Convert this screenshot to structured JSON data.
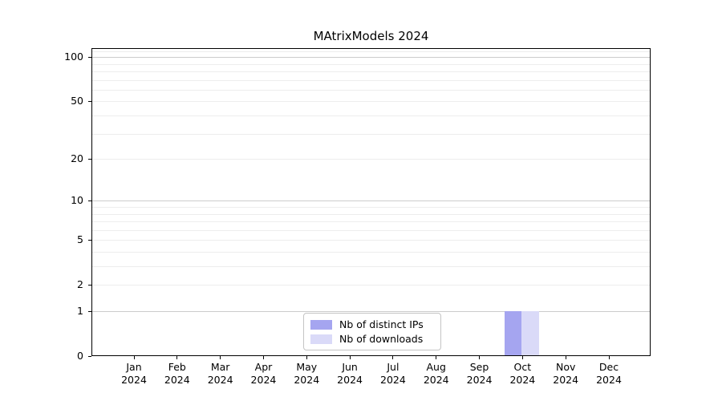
{
  "figure": {
    "title": "MAtrixModels 2024"
  },
  "chart_data": {
    "type": "bar",
    "title": "MAtrixModels 2024",
    "categories": [
      "Jan",
      "Feb",
      "Mar",
      "Apr",
      "May",
      "Jun",
      "Jul",
      "Aug",
      "Sep",
      "Oct",
      "Nov",
      "Dec"
    ],
    "x_sub_label": "2024",
    "series": [
      {
        "name": "Nb of distinct IPs",
        "color": "#a5a5f0",
        "values": [
          0,
          0,
          0,
          0,
          0,
          0,
          0,
          0,
          0,
          1,
          0,
          0
        ]
      },
      {
        "name": "Nb of downloads",
        "color": "#dadaf8",
        "values": [
          0,
          0,
          0,
          0,
          0,
          0,
          0,
          0,
          0,
          1,
          0,
          0
        ]
      }
    ],
    "xlabel": "",
    "ylabel": "",
    "y_scale": "log1p",
    "ylim": [
      0,
      115
    ],
    "y_ticks": [
      0,
      1,
      2,
      5,
      10,
      20,
      50,
      100
    ],
    "grid": {
      "on": true,
      "major_lines": [
        1,
        10,
        100
      ],
      "minor_lines": [
        2,
        3,
        4,
        5,
        6,
        7,
        8,
        9,
        20,
        30,
        40,
        50,
        60,
        70,
        80,
        90,
        110
      ],
      "major_color": "#cccccc",
      "minor_color": "#ededed"
    },
    "legend": {
      "position": "lower center",
      "entries": [
        "Nb of distinct IPs",
        "Nb of downloads"
      ]
    }
  }
}
